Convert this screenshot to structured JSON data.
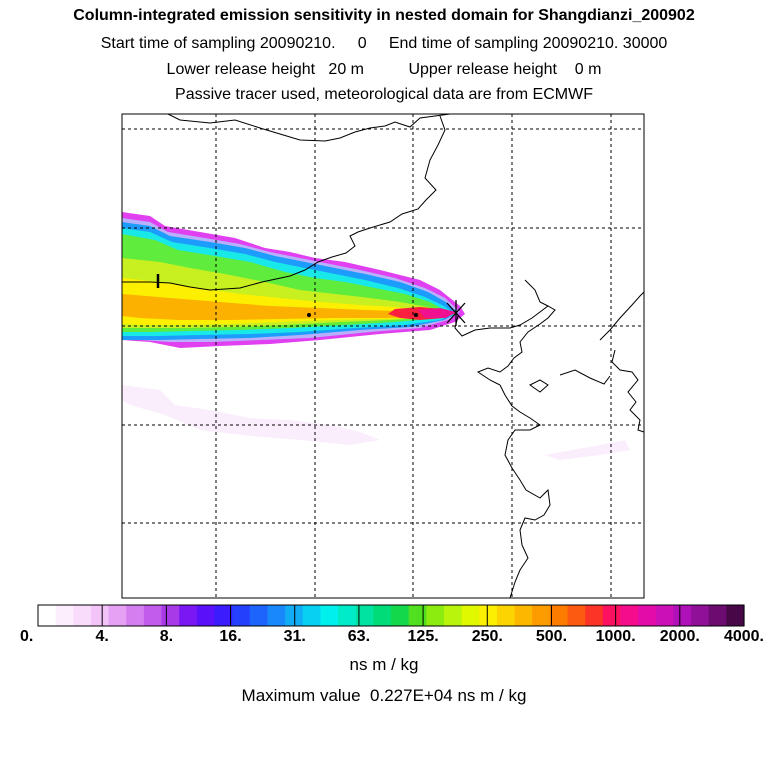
{
  "title": "Column-integrated emission sensitivity in nested domain for Shangdianzi_200902",
  "sampling_line": "Start time of sampling 20090210.     0     End time of sampling 20090210. 30000",
  "release_line": "Lower release height   20 m          Upper release height    0 m",
  "tracer_line": "Passive tracer used, meteorological data are from ECMWF",
  "colorbar": {
    "tick_labels": [
      "0.",
      "4.",
      "8.",
      "16.",
      "31.",
      "63.",
      "125.",
      "250.",
      "500.",
      "1000.",
      "2000.",
      "4000."
    ],
    "colors": [
      "#ffffff",
      "#fdeefe",
      "#f9dcfc",
      "#f3c4f8",
      "#e6a0f4",
      "#d57ef0",
      "#c25cec",
      "#a83ae8",
      "#7a18f4",
      "#5a10f8",
      "#3a1cfc",
      "#2440fc",
      "#1c64fc",
      "#1888fa",
      "#10acf6",
      "#08d0f2",
      "#00f0ee",
      "#00ecc8",
      "#00e4a0",
      "#00dc78",
      "#14d84c",
      "#50e020",
      "#8cec10",
      "#b8f40c",
      "#e0f800",
      "#fcf000",
      "#fcd400",
      "#fcb800",
      "#fc9c00",
      "#fc7c00",
      "#fc5a10",
      "#fc3428",
      "#fc1060",
      "#f40c8c",
      "#e40ca8",
      "#cc10b8",
      "#b010b8",
      "#901098",
      "#6c0c70",
      "#480848"
    ],
    "units": "ns m / kg"
  },
  "max_value_line": "Maximum value  0.227E+04 ns m / kg",
  "map": {
    "receptor": "Shangdianzi",
    "plume_colors": {
      "outer": "#e040f0",
      "halo": "#b8b0fc",
      "blue": "#1c9cfc",
      "cyan": "#18e8e8",
      "green": "#60ec3c",
      "lime": "#c8f020",
      "yellow": "#fcf000",
      "orange": "#fcb000",
      "red": "#fc2040",
      "magenta": "#f01090",
      "faint": "#fbeefc"
    }
  }
}
